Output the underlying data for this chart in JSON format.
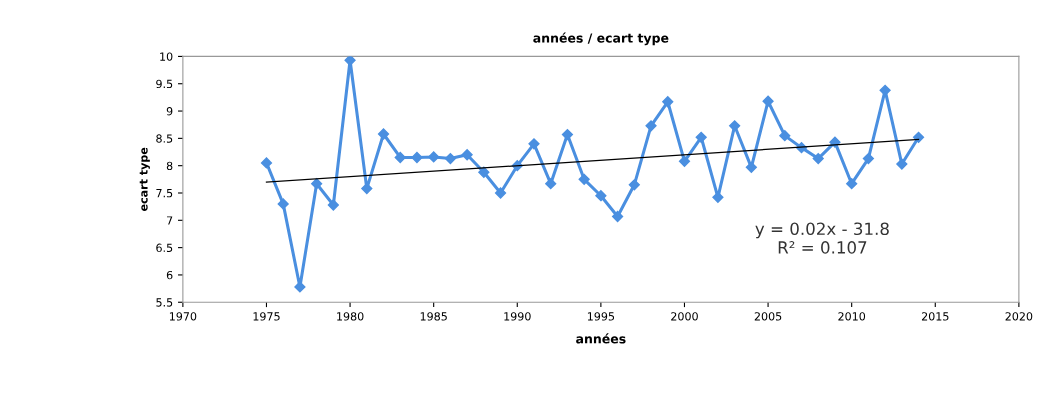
{
  "chart_data": {
    "type": "line",
    "title": "années / ecart type",
    "xlabel": "années",
    "ylabel": "ecart type",
    "xlim": [
      1970,
      2020
    ],
    "xticks": [
      1970,
      1975,
      1980,
      1985,
      1990,
      1995,
      2000,
      2005,
      2010,
      2015,
      2020
    ],
    "ylim": [
      5.5,
      10
    ],
    "yticks": [
      5.5,
      6,
      6.5,
      7,
      7.5,
      8,
      8.5,
      9,
      9.5,
      10
    ],
    "grid": false,
    "legend": false,
    "marker": "diamond",
    "line_style": "solid",
    "annotations": [
      "y = 0.02x - 31.8",
      "R² = 0.107"
    ],
    "series": [
      {
        "color": "#4a8fe0",
        "x": [
          1975,
          1976,
          1977,
          1978,
          1979,
          1980,
          1981,
          1982,
          1983,
          1984,
          1985,
          1986,
          1987,
          1988,
          1989,
          1990,
          1991,
          1992,
          1993,
          1994,
          1995,
          1996,
          1997,
          1998,
          1999,
          2000,
          2001,
          2002,
          2003,
          2004,
          2005,
          2006,
          2007,
          2008,
          2009,
          2010,
          2011,
          2012,
          2013,
          2014
        ],
        "values": [
          8.05,
          7.3,
          5.78,
          7.67,
          7.28,
          9.93,
          7.58,
          8.58,
          8.15,
          8.15,
          8.16,
          8.13,
          8.2,
          7.88,
          7.5,
          8.0,
          8.4,
          7.67,
          8.57,
          7.75,
          7.45,
          7.07,
          7.65,
          8.73,
          9.17,
          8.08,
          8.52,
          7.42,
          8.73,
          7.97,
          9.18,
          8.55,
          8.33,
          8.13,
          8.43,
          7.67,
          8.13,
          9.38,
          8.03,
          8.52
        ]
      },
      {
        "type": "line",
        "color": "#000000",
        "marker": "none",
        "x": [
          1975,
          2014
        ],
        "values": [
          7.7,
          8.48
        ]
      }
    ]
  }
}
